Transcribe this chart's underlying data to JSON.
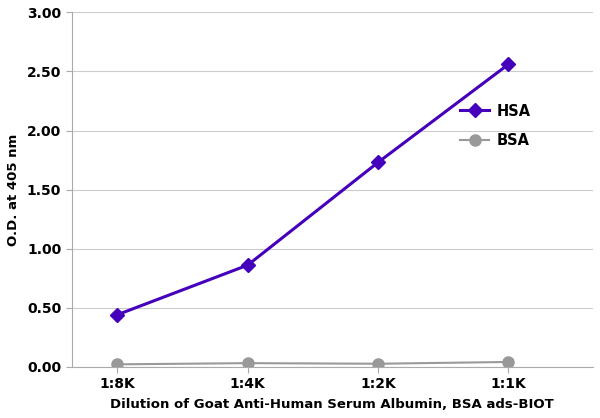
{
  "x_labels": [
    "1:8K",
    "1:4K",
    "1:2K",
    "1:1K"
  ],
  "x_values": [
    0,
    1,
    2,
    3
  ],
  "hsa_values": [
    0.44,
    0.86,
    1.73,
    2.56
  ],
  "bsa_values": [
    0.02,
    0.03,
    0.025,
    0.04
  ],
  "hsa_color": "#4400BB",
  "bsa_color": "#999999",
  "hsa_label": "HSA",
  "bsa_label": "BSA",
  "xlabel": "Dilution of Goat Anti-Human Serum Albumin, BSA ads-BIOT",
  "ylabel": "O.D. at 405 nm",
  "ylim": [
    0.0,
    3.0
  ],
  "yticks": [
    0.0,
    0.5,
    1.0,
    1.5,
    2.0,
    2.5,
    3.0
  ],
  "ytick_labels": [
    "0.00",
    "0.50",
    "1.00",
    "1.50",
    "2.00",
    "2.50",
    "3.00"
  ],
  "background_color": "#ffffff",
  "grid_color": "#cccccc",
  "hsa_linewidth": 2.2,
  "bsa_linewidth": 1.5,
  "hsa_markersize": 7,
  "bsa_markersize": 8,
  "hsa_marker": "D",
  "bsa_marker": "o",
  "xlim": [
    -0.35,
    3.65
  ]
}
